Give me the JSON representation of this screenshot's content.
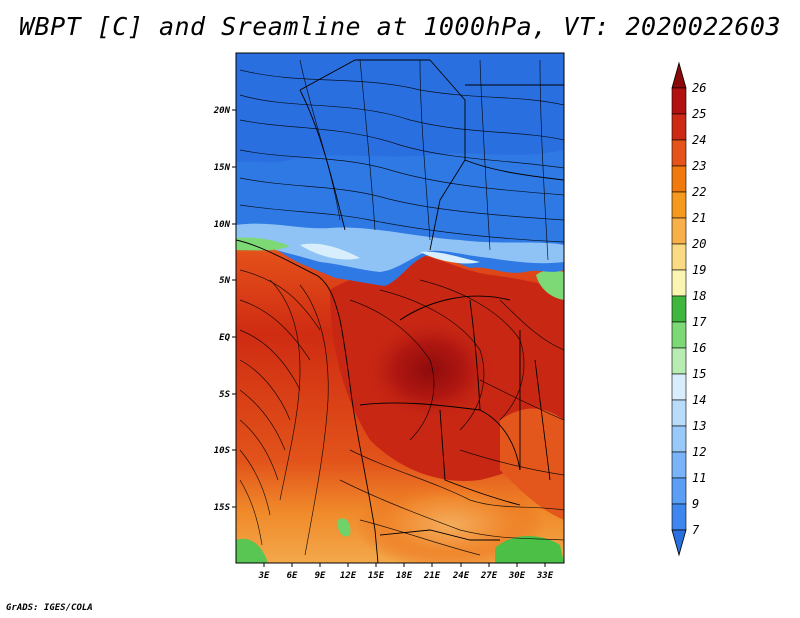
{
  "title": "WBPT [C] and Sreamline at 1000hPa, VT: 2020022603",
  "credit": "GrADS: IGES/COLA",
  "map": {
    "lon_range": [
      0,
      35
    ],
    "lat_range": [
      -20,
      25
    ],
    "lon_ticks": [
      "3E",
      "6E",
      "9E",
      "12E",
      "15E",
      "18E",
      "21E",
      "24E",
      "27E",
      "30E",
      "33E"
    ],
    "lat_ticks": [
      "20N",
      "15N",
      "10N",
      "5N",
      "EQ",
      "5S",
      "10S",
      "15S"
    ]
  },
  "colorbar": {
    "labels": [
      "7",
      "9",
      "11",
      "12",
      "13",
      "14",
      "15",
      "16",
      "17",
      "18",
      "19",
      "20",
      "21",
      "22",
      "23",
      "24",
      "25",
      "26"
    ],
    "colors": [
      "#2a6fe0",
      "#3f86ee",
      "#5a9ff5",
      "#78b4f7",
      "#98c9f8",
      "#b8dcf9",
      "#d8eefc",
      "#b7ecb3",
      "#7dd876",
      "#3fb63c",
      "#faf5b0",
      "#fadb84",
      "#f8b14a",
      "#f59a1f",
      "#f07a0d",
      "#e4531a",
      "#cc2a14",
      "#b31010",
      "#8a0a0a"
    ]
  }
}
